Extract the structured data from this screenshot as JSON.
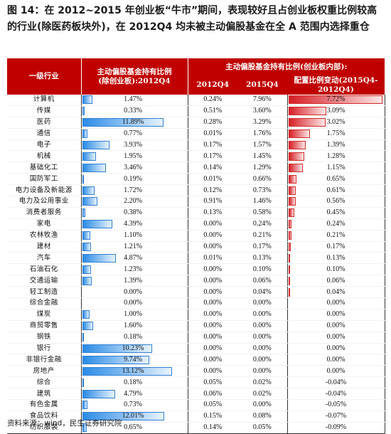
{
  "title": "图 14：在 2012~2015 年创业板“牛市”期间，表现较好且占创业板权重比例较高的行业(除医药板块外)，在 2012Q4 均未被主动偏股基金在全 A 范围内选择重仓",
  "headers": {
    "industry": "一级行业",
    "holding_title": "主动偏股基金持有比例",
    "holding_sub": "(除创业板):2012Q4",
    "gem_group": "主动偏股基金持有比例(创业板内部):",
    "q2012": "2012Q4",
    "q2015": "2015Q4",
    "change_title": "配置比例变动(2015Q4-",
    "change_sub": "2012Q4)"
  },
  "rows": [
    {
      "industry": "计算机",
      "holding": "1.47%",
      "q2012": "0.24%",
      "q2015": "7.96%",
      "change": "7.72%"
    },
    {
      "industry": "传媒",
      "holding": "0.33%",
      "q2012": "0.51%",
      "q2015": "3.60%",
      "change": "3.09%"
    },
    {
      "industry": "医药",
      "holding": "11.89%",
      "q2012": "0.28%",
      "q2015": "3.29%",
      "change": "3.02%"
    },
    {
      "industry": "通信",
      "holding": "0.77%",
      "q2012": "0.01%",
      "q2015": "1.76%",
      "change": "1.75%"
    },
    {
      "industry": "电子",
      "holding": "3.93%",
      "q2012": "0.17%",
      "q2015": "1.57%",
      "change": "1.39%"
    },
    {
      "industry": "机械",
      "holding": "1.95%",
      "q2012": "0.17%",
      "q2015": "1.45%",
      "change": "1.28%"
    },
    {
      "industry": "基础化工",
      "holding": "3.46%",
      "q2012": "0.14%",
      "q2015": "1.29%",
      "change": "1.15%"
    },
    {
      "industry": "国防军工",
      "holding": "0.19%",
      "q2012": "0.01%",
      "q2015": "0.66%",
      "change": "0.65%"
    },
    {
      "industry": "电力设备及新能源",
      "holding": "1.72%",
      "q2012": "0.12%",
      "q2015": "0.73%",
      "change": "0.61%"
    },
    {
      "industry": "电力及公用事业",
      "holding": "2.20%",
      "q2012": "0.91%",
      "q2015": "1.46%",
      "change": "0.56%"
    },
    {
      "industry": "消费者服务",
      "holding": "0.38%",
      "q2012": "0.13%",
      "q2015": "0.58%",
      "change": "0.45%"
    },
    {
      "industry": "家电",
      "holding": "4.39%",
      "q2012": "0.00%",
      "q2015": "0.24%",
      "change": "0.24%"
    },
    {
      "industry": "农林牧渔",
      "holding": "1.10%",
      "q2012": "0.00%",
      "q2015": "0.21%",
      "change": "0.21%"
    },
    {
      "industry": "建材",
      "holding": "1.21%",
      "q2012": "0.00%",
      "q2015": "0.17%",
      "change": "0.17%"
    },
    {
      "industry": "汽车",
      "holding": "4.87%",
      "q2012": "0.01%",
      "q2015": "0.13%",
      "change": "0.13%"
    },
    {
      "industry": "石油石化",
      "holding": "1.23%",
      "q2012": "0.00%",
      "q2015": "0.10%",
      "change": "0.10%"
    },
    {
      "industry": "交通运输",
      "holding": "1.39%",
      "q2012": "0.00%",
      "q2015": "0.06%",
      "change": "0.06%"
    },
    {
      "industry": "轻工制造",
      "holding": "0.00%",
      "q2012": "0.00%",
      "q2015": "0.04%",
      "change": "0.04%"
    },
    {
      "industry": "综合金融",
      "holding": "0.00%",
      "q2012": "0.00%",
      "q2015": "0.00%",
      "change": "0.00%"
    },
    {
      "industry": "煤炭",
      "holding": "1.00%",
      "q2012": "0.00%",
      "q2015": "0.00%",
      "change": "0.00%"
    },
    {
      "industry": "商贸零售",
      "holding": "1.60%",
      "q2012": "0.00%",
      "q2015": "0.00%",
      "change": "0.00%"
    },
    {
      "industry": "钢铁",
      "holding": "0.18%",
      "q2012": "0.00%",
      "q2015": "0.00%",
      "change": "0.00%"
    },
    {
      "industry": "银行",
      "holding": "10.23%",
      "q2012": "0.00%",
      "q2015": "0.00%",
      "change": "0.00%"
    },
    {
      "industry": "非银行金融",
      "holding": "9.74%",
      "q2012": "0.00%",
      "q2015": "0.00%",
      "change": "0.00%"
    },
    {
      "industry": "房地产",
      "holding": "13.12%",
      "q2012": "0.00%",
      "q2015": "0.00%",
      "change": "0.00%"
    },
    {
      "industry": "综合",
      "holding": "0.18%",
      "q2012": "0.05%",
      "q2015": "0.02%",
      "change": "-0.04%"
    },
    {
      "industry": "建筑",
      "holding": "4.79%",
      "q2012": "0.06%",
      "q2015": "0.02%",
      "change": "-0.04%"
    },
    {
      "industry": "有色金属",
      "holding": "0.73%",
      "q2012": "0.05%",
      "q2015": "0.00%",
      "change": "-0.05%"
    },
    {
      "industry": "食品饮料",
      "holding": "12.01%",
      "q2012": "0.15%",
      "q2015": "0.08%",
      "change": "-0.07%"
    },
    {
      "industry": "纺织服装",
      "holding": "0.65%",
      "q2012": "0.14%",
      "q2015": "0.05%",
      "change": "-0.09%"
    }
  ],
  "source": "资料来源：wind，民生证券研究院",
  "colors": {
    "header_bg": "#c00000",
    "blue_bar": "#2b8be6",
    "red_bar": "#d61f26"
  }
}
